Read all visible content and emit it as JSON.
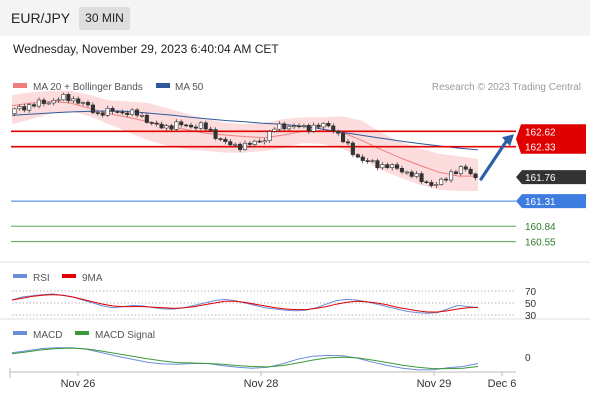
{
  "header": {
    "symbol": "EUR/JPY",
    "timeframe": "30 MIN"
  },
  "timestamp": "Wednesday, November 29, 2023 6:40:04 AM CET",
  "legend": {
    "bollinger": "MA 20 + Bollinger Bands",
    "ma50": "MA 50",
    "credit": "Research © 2023 Trading Central",
    "rsi": "RSI",
    "rsi_ma": "9MA",
    "macd": "MACD",
    "macd_signal": "MACD Signal"
  },
  "colors": {
    "bollinger": "#f08080",
    "band_fill": "#fbd6d6",
    "ma50": "#2e5a9c",
    "resistance": "#e00000",
    "support": "#3d7de0",
    "target": "#3a9a3a",
    "up_candle": "#ffffff",
    "down_candle": "#333333",
    "rsi": "#6c8ed8",
    "macd_signal": "#3a9a3a",
    "arrow": "#2d5fa6"
  },
  "chart_data": [
    {
      "type": "candlestick",
      "ylim": [
        160.3,
        163.3
      ],
      "x_tick_labels": [
        "Nov 26",
        "Nov 28",
        "Nov 29",
        "Dec 6"
      ],
      "current_price": 161.76,
      "levels": [
        {
          "value": 162.62,
          "label": "162.62",
          "kind": "resistance"
        },
        {
          "value": 162.33,
          "label": "162.33",
          "kind": "resistance"
        },
        {
          "value": 161.76,
          "label": "161.76",
          "kind": "current"
        },
        {
          "value": 161.31,
          "label": "161.31",
          "kind": "support"
        },
        {
          "value": 160.84,
          "label": "160.84",
          "kind": "target"
        },
        {
          "value": 160.55,
          "label": "160.55",
          "kind": "target"
        }
      ],
      "price_path": [
        162.95,
        163.05,
        163.08,
        163.12,
        163.15,
        163.18,
        163.22,
        163.25,
        163.22,
        163.15,
        163.05,
        162.95,
        162.98,
        163.0,
        162.98,
        162.95,
        162.95,
        162.85,
        162.72,
        162.7,
        162.72,
        162.75,
        162.72,
        162.72,
        162.72,
        162.62,
        162.5,
        162.38,
        162.35,
        162.35,
        162.38,
        162.42,
        162.52,
        162.68,
        162.72,
        162.72,
        162.7,
        162.68,
        162.72,
        162.72,
        162.72,
        162.55,
        162.35,
        162.18,
        162.08,
        162.02,
        161.98,
        161.98,
        161.92,
        161.88,
        161.82,
        161.72,
        161.65,
        161.62,
        161.68,
        161.85,
        161.92,
        161.88,
        161.75
      ],
      "ma50_path": [
        162.92,
        162.94,
        162.96,
        162.98,
        162.99,
        163.0,
        163.0,
        162.98,
        162.95,
        162.92,
        162.88,
        162.85,
        162.82,
        162.8,
        162.77,
        162.75,
        162.72,
        162.68,
        162.62,
        162.57,
        162.52,
        162.47,
        162.42,
        162.38,
        162.34,
        162.3,
        162.27
      ],
      "bollinger_mid_path": [
        163.1,
        163.15,
        163.18,
        163.15,
        163.05,
        162.95,
        162.88,
        162.8,
        162.72,
        162.65,
        162.58,
        162.55,
        162.52,
        162.5,
        162.55,
        162.62,
        162.63,
        162.6,
        162.45,
        162.28,
        162.12,
        161.98,
        161.85,
        161.78,
        161.78
      ],
      "bollinger_upper_path": [
        163.3,
        163.35,
        163.38,
        163.38,
        163.3,
        163.2,
        163.18,
        163.15,
        163.05,
        162.95,
        162.85,
        162.78,
        162.75,
        162.78,
        162.85,
        162.88,
        162.88,
        162.9,
        162.82,
        162.6,
        162.42,
        162.3,
        162.2,
        162.15,
        162.1
      ],
      "bollinger_lower_path": [
        162.75,
        162.85,
        162.95,
        163.0,
        162.9,
        162.75,
        162.6,
        162.45,
        162.35,
        162.28,
        162.25,
        162.22,
        162.22,
        162.25,
        162.3,
        162.4,
        162.38,
        162.3,
        162.1,
        161.9,
        161.75,
        161.62,
        161.52,
        161.5,
        161.5
      ]
    },
    {
      "type": "line",
      "name": "RSI panel",
      "ylim": [
        25,
        75
      ],
      "y_ticks": [
        70,
        50,
        30
      ],
      "rsi_path": [
        55,
        60,
        62,
        64,
        65,
        63,
        60,
        55,
        50,
        45,
        42,
        44,
        46,
        45,
        42,
        40,
        40,
        42,
        46,
        50,
        54,
        56,
        54,
        50,
        46,
        42,
        40,
        38,
        37,
        38,
        42,
        48,
        54,
        56,
        55,
        52,
        48,
        44,
        40,
        36,
        34,
        33,
        34,
        40,
        46,
        44,
        42
      ],
      "rsi_ma_path": [
        55,
        58,
        61,
        63,
        64,
        63,
        60,
        56,
        52,
        48,
        45,
        44,
        44,
        44,
        43,
        42,
        41,
        42,
        44,
        47,
        50,
        53,
        53,
        51,
        48,
        45,
        42,
        40,
        39,
        39,
        41,
        44,
        48,
        51,
        53,
        52,
        50,
        47,
        43,
        40,
        37,
        35,
        35,
        37,
        40,
        42,
        43
      ]
    },
    {
      "type": "line",
      "name": "MACD panel",
      "ylim": [
        -0.35,
        0.4
      ],
      "y_ticks": [
        0
      ],
      "macd_path": [
        0.1,
        0.15,
        0.2,
        0.22,
        0.22,
        0.18,
        0.1,
        0.02,
        -0.05,
        -0.12,
        -0.16,
        -0.17,
        -0.15,
        -0.15,
        -0.2,
        -0.24,
        -0.26,
        -0.24,
        -0.16,
        -0.05,
        0.02,
        0.04,
        0.03,
        -0.03,
        -0.12,
        -0.2,
        -0.26,
        -0.3,
        -0.3,
        -0.25,
        -0.22,
        -0.15
      ],
      "signal_path": [
        0.08,
        0.12,
        0.17,
        0.2,
        0.21,
        0.19,
        0.14,
        0.08,
        0.02,
        -0.04,
        -0.09,
        -0.13,
        -0.14,
        -0.15,
        -0.17,
        -0.2,
        -0.22,
        -0.23,
        -0.2,
        -0.14,
        -0.07,
        -0.02,
        0.0,
        -0.02,
        -0.07,
        -0.13,
        -0.19,
        -0.24,
        -0.27,
        -0.27,
        -0.26,
        -0.22
      ]
    }
  ]
}
